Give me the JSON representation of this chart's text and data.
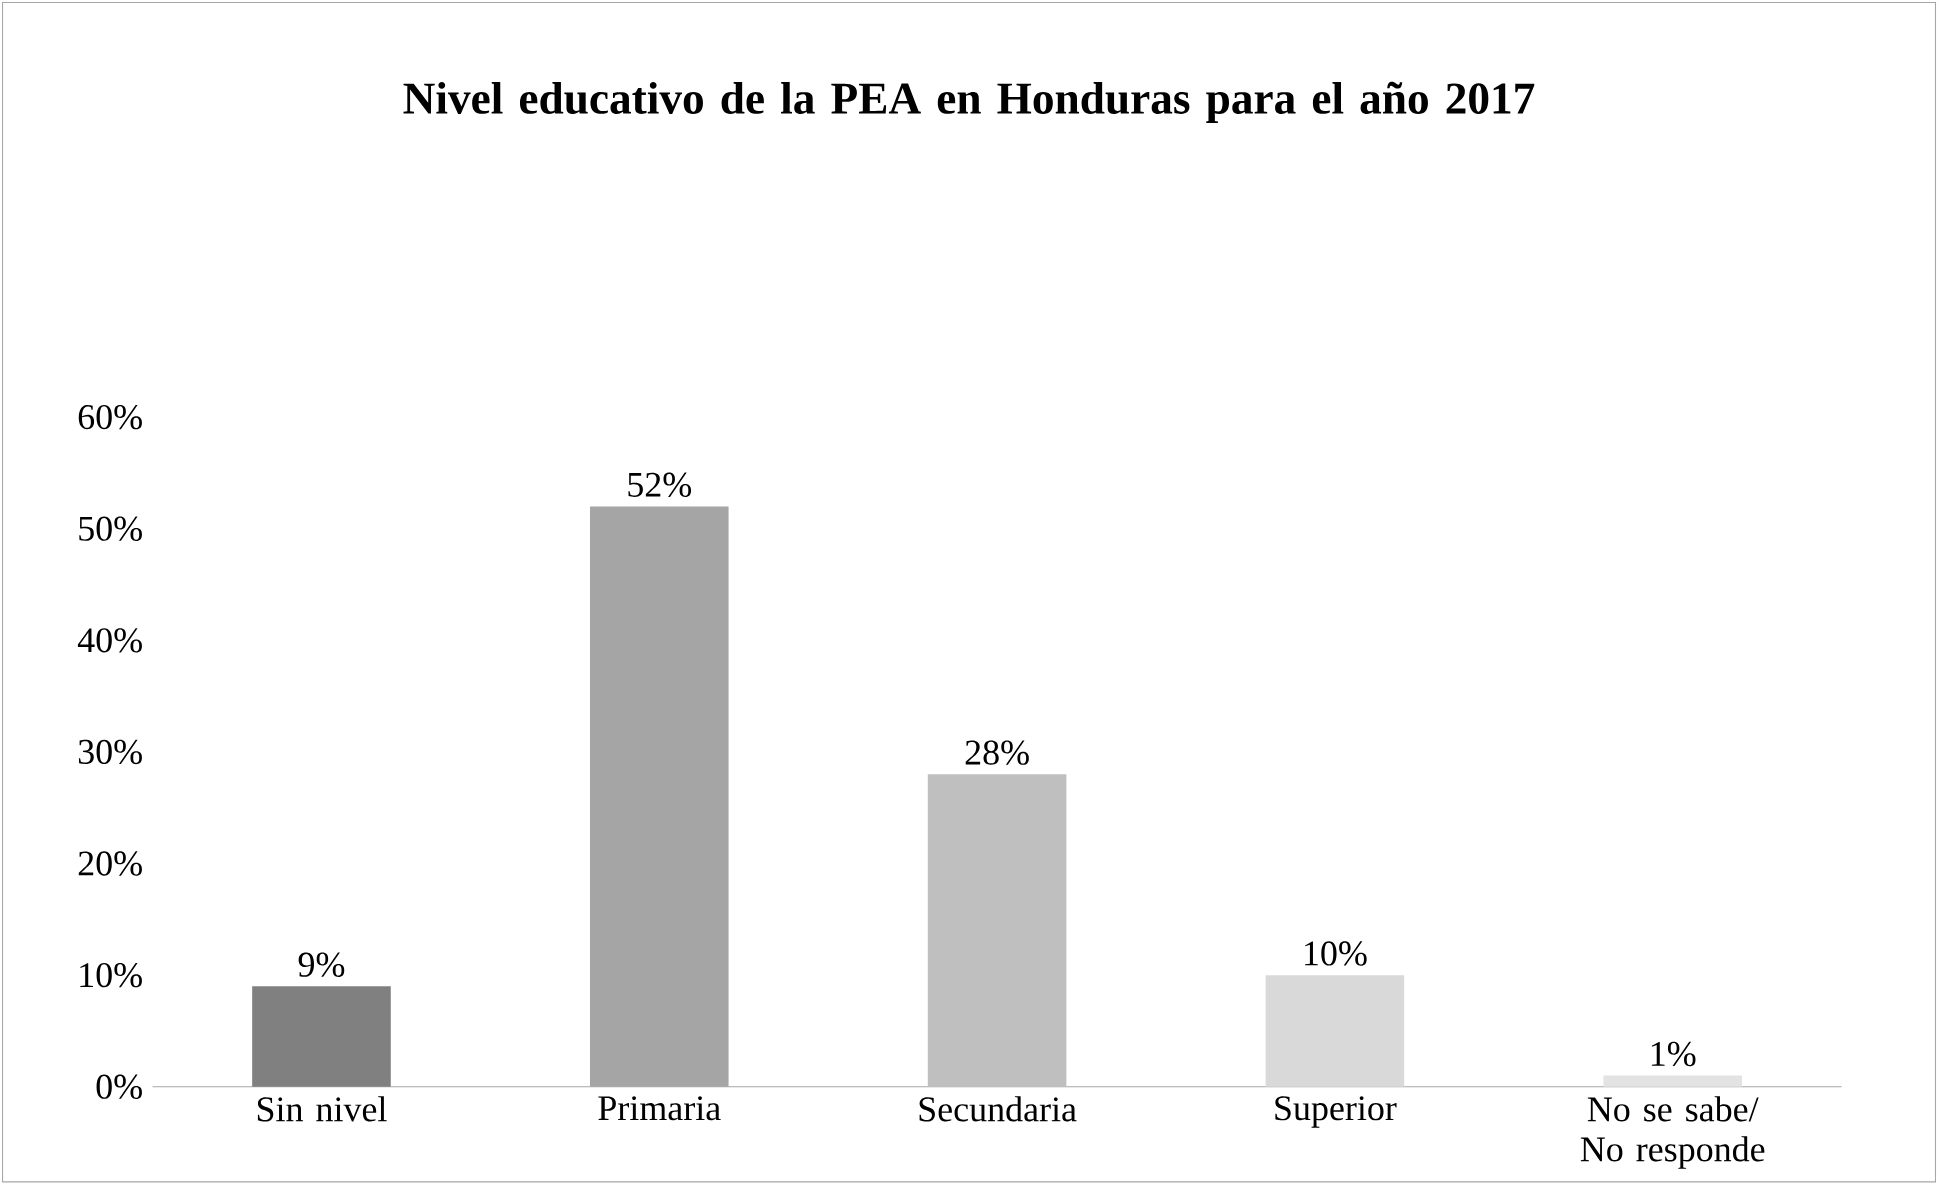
{
  "chart_data": {
    "type": "bar",
    "title": "Nivel educativo de la PEA en Honduras para el año 2017",
    "categories": [
      "Sin nivel",
      "Primaria",
      "Secundaria",
      "Superior",
      "No se sabe/ No responde"
    ],
    "values": [
      9,
      52,
      28,
      10,
      1
    ],
    "value_labels": [
      "9%",
      "52%",
      "28%",
      "10%",
      "1%"
    ],
    "colors": [
      "#808080",
      "#a5a5a5",
      "#bfbfbf",
      "#d9d9d9",
      "#e3e3e3"
    ],
    "ylim": [
      0,
      60
    ],
    "yticks": [
      {
        "value": 0,
        "label": "0%"
      },
      {
        "value": 10,
        "label": "10%"
      },
      {
        "value": 20,
        "label": "20%"
      },
      {
        "value": 30,
        "label": "30%"
      },
      {
        "value": 40,
        "label": "40%"
      },
      {
        "value": 50,
        "label": "50%"
      },
      {
        "value": 60,
        "label": "60%"
      }
    ],
    "grid": false
  }
}
